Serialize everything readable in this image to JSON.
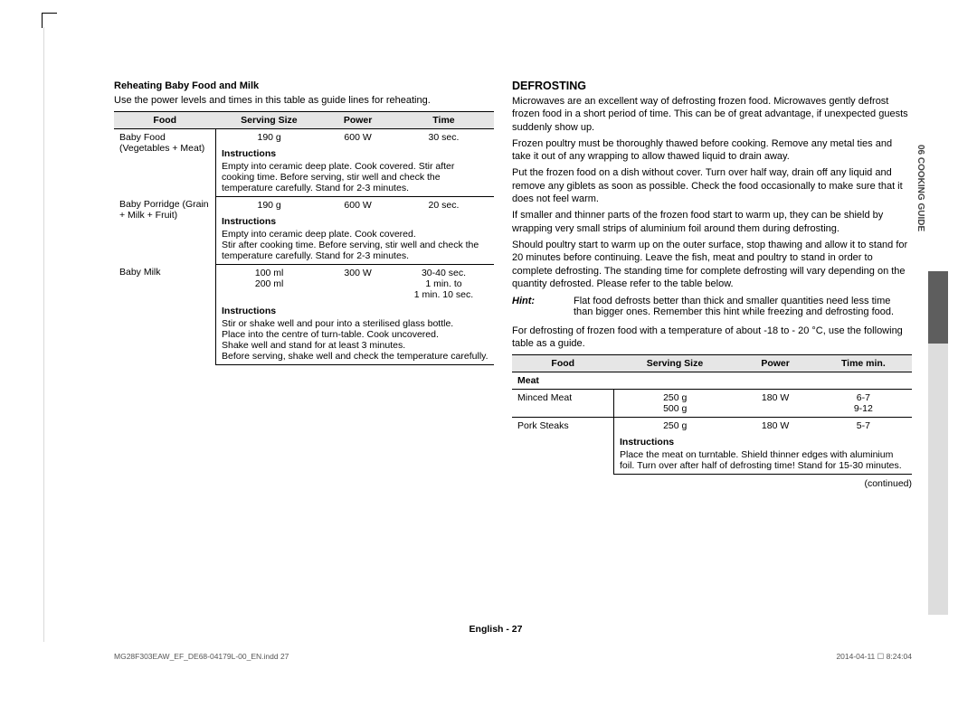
{
  "page": {
    "side_tab": "06  COOKING GUIDE",
    "footer": "English - 27",
    "meta_file": "MG28F303EAW_EF_DE68-04179L-00_EN.indd   27",
    "meta_time": "2014-04-11   ☐ 8:24:04",
    "continued": "(continued)"
  },
  "left": {
    "heading": "Reheating Baby Food and Milk",
    "intro": "Use the power levels and times in this table as guide lines for reheating.",
    "table": {
      "headers": [
        "Food",
        "Serving Size",
        "Power",
        "Time"
      ],
      "instr_label": "Instructions",
      "rows": [
        {
          "food": "Baby Food (Vegetables + Meat)",
          "serving": "190 g",
          "power": "600 W",
          "time": "30 sec.",
          "instr": "Empty into ceramic deep plate. Cook covered. Stir after cooking time. Before serving, stir well and check the temperature carefully. Stand for 2-3 minutes."
        },
        {
          "food": "Baby Porridge (Grain + Milk + Fruit)",
          "serving": "190 g",
          "power": "600 W",
          "time": "20 sec.",
          "instr": "Empty into ceramic deep plate. Cook covered.\nStir after cooking time. Before serving, stir well and check the temperature carefully. Stand for 2-3 minutes."
        },
        {
          "food": "Baby Milk",
          "serving_lines": [
            "100 ml",
            "200 ml"
          ],
          "power": "300 W",
          "time_lines": [
            "30-40 sec.",
            "1 min. to",
            "1 min. 10 sec."
          ],
          "instr": "Stir or shake well and pour into a sterilised glass bottle.\nPlace into the centre of turn-table. Cook uncovered.\nShake well and stand for at least 3 minutes.\nBefore serving, shake well and check the temperature carefully."
        }
      ]
    }
  },
  "right": {
    "heading": "DEFROSTING",
    "paragraphs": [
      "Microwaves are an excellent way of defrosting frozen food. Microwaves gently defrost frozen food in a short period of time. This can be of great advantage, if unexpected guests suddenly show up.",
      "Frozen poultry must be thoroughly thawed before cooking. Remove any metal ties and take it out of any wrapping to allow thawed liquid to drain away.",
      "Put the frozen food on a dish without cover. Turn over half way, drain off any liquid and remove any giblets as soon as possible. Check the food occasionally to make sure that it does not feel warm.",
      "If smaller and thinner parts of the frozen food start to warm up, they can be shield by wrapping very small strips of aluminium foil around them during defrosting.",
      "Should poultry start to warm up on the outer surface, stop thawing and allow it to stand for 20 minutes before continuing. Leave the fish, meat and poultry to stand in order to complete defrosting. The standing time for complete defrosting will vary depending on the quantity defrosted. Please refer to the table below."
    ],
    "hint_label": "Hint:",
    "hint_text": "Flat food defrosts better than thick and smaller quantities need less time than bigger ones. Remember this hint while freezing and defrosting food.",
    "post_hint": "For defrosting of frozen food with a temperature of about -18 to - 20 °C, use the following table as a guide.",
    "table": {
      "headers": [
        "Food",
        "Serving Size",
        "Power",
        "Time min."
      ],
      "instr_label": "Instructions",
      "category": "Meat",
      "rows": [
        {
          "food": "Minced Meat",
          "serving_lines": [
            "250 g",
            "500 g"
          ],
          "power": "180 W",
          "time_lines": [
            "6-7",
            "9-12"
          ]
        },
        {
          "food": "Pork Steaks",
          "serving": "250 g",
          "power": "180 W",
          "time": "5-7"
        }
      ],
      "instr": "Place the meat on turntable. Shield thinner edges with aluminium foil. Turn over after half of defrosting time! Stand for 15-30 minutes."
    }
  }
}
